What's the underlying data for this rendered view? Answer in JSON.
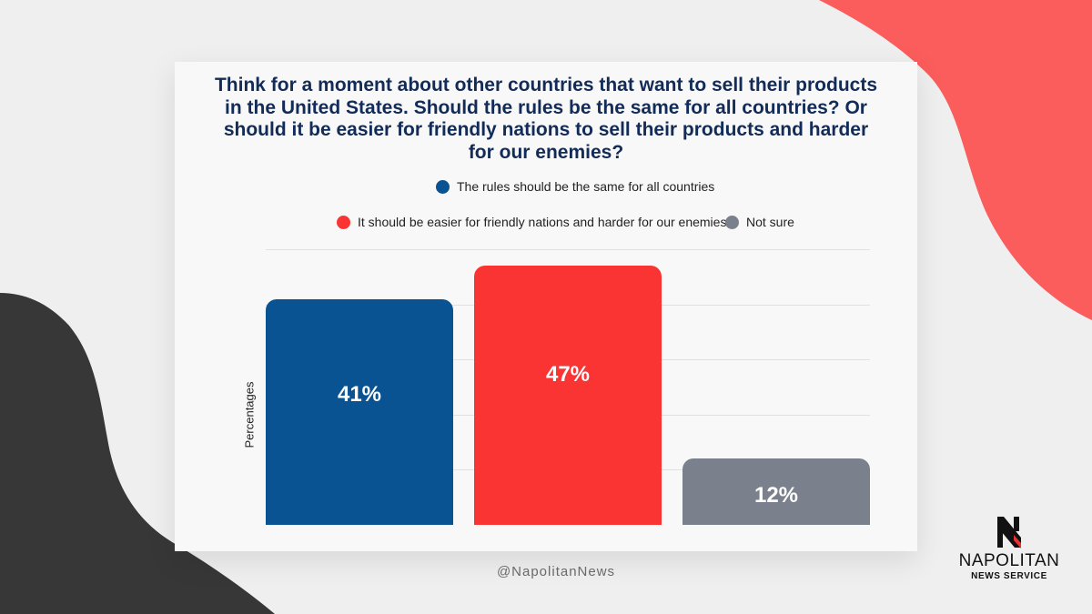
{
  "chart_data": {
    "type": "bar",
    "title": "Think for a moment about other countries that want to sell their products in the United States. Should the rules be the same for all countries? Or should it be easier for friendly nations to sell their products and harder for our enemies?",
    "ylabel": "Percentages",
    "ylim": [
      0,
      50
    ],
    "grid": true,
    "legend_position": "top",
    "categories": [
      "The rules should be the same for all countries",
      "It should be easier for friendly nations and harder for our enemies",
      "Not sure"
    ],
    "values": [
      41,
      47,
      12
    ],
    "value_labels": [
      "41%",
      "47%",
      "12%"
    ],
    "colors": [
      "#0a5393",
      "#fa3333",
      "#7b818c"
    ]
  },
  "footer": {
    "handle": "@NapolitanNews"
  },
  "logo": {
    "name": "NAPOLITAN",
    "subtitle": "NEWS SERVICE"
  },
  "colors": {
    "background": "#efefef",
    "coral_blob": "#fb5c5c",
    "dark_blob": "#373737",
    "title": "#122b57"
  }
}
